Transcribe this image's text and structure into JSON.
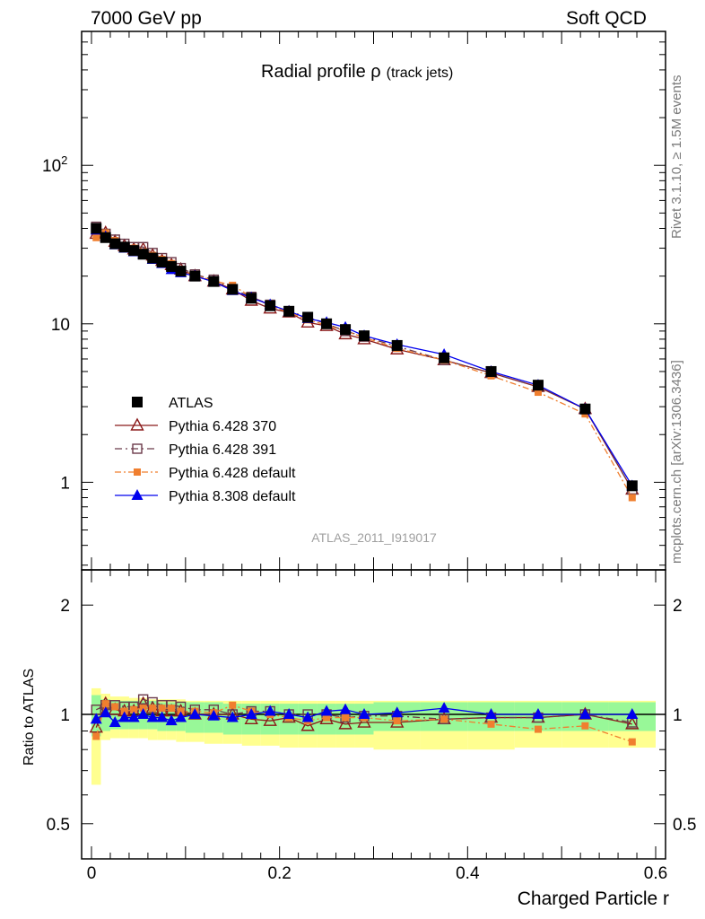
{
  "header": {
    "energy_label": "7000 GeV pp",
    "category_label": "Soft QCD"
  },
  "side_labels": {
    "rivet": "Rivet 3.1.10, ≥ 1.5M events",
    "mcplots": "mcplots.cern.ch [arXiv:1306.3436]"
  },
  "colors": {
    "atlas": "#000000",
    "pythia_370": "#8b1a1a",
    "pythia_391": "#6b3a4a",
    "pythia_6_default": "#f07f2f",
    "pythia_8_default": "#0000ee",
    "band_inner": "#98f898",
    "band_outer": "#ffff90"
  },
  "chart_data": [
    {
      "type": "scatter",
      "title": "Radial profile ρ",
      "title_suffix": "(track jets)",
      "watermark": "ATLAS_2011_I919017",
      "ylabel": "",
      "y_scale": "log",
      "ylim": [
        0.28,
        700
      ],
      "xlim": [
        -0.02,
        0.6
      ],
      "y_tick_labels": [
        "1",
        "10",
        "10^2"
      ],
      "legend_position": "lower-left",
      "x": [
        0.005,
        0.015,
        0.025,
        0.035,
        0.045,
        0.055,
        0.065,
        0.075,
        0.085,
        0.095,
        0.11,
        0.13,
        0.15,
        0.17,
        0.19,
        0.21,
        0.23,
        0.25,
        0.27,
        0.29,
        0.325,
        0.375,
        0.425,
        0.475,
        0.525,
        0.575
      ],
      "series": [
        {
          "name": "ATLAS",
          "marker": "filled-square",
          "color": "#000000",
          "values": [
            40.0,
            35.0,
            32.0,
            30.5,
            29.0,
            27.5,
            26.0,
            24.5,
            23.0,
            21.5,
            20.0,
            18.5,
            16.5,
            14.5,
            13.0,
            12.0,
            11.0,
            10.0,
            9.2,
            8.4,
            7.3,
            6.1,
            5.0,
            4.1,
            2.9,
            0.95
          ]
        },
        {
          "name": "Pythia 6.428 370",
          "marker": "open-triangle",
          "color": "#8b1a1a",
          "values": [
            37.0,
            37.5,
            33.0,
            31.0,
            29.5,
            29.5,
            27.0,
            25.0,
            23.5,
            22.0,
            20.0,
            18.5,
            16.5,
            14.0,
            12.5,
            11.8,
            10.2,
            9.7,
            8.6,
            8.0,
            6.9,
            5.9,
            4.9,
            4.0,
            2.9,
            0.9
          ]
        },
        {
          "name": "Pythia 6.428 391",
          "marker": "open-square",
          "color": "#6b3a4a",
          "values": [
            41.0,
            37.0,
            34.0,
            32.0,
            30.5,
            30.5,
            28.0,
            26.0,
            24.5,
            22.5,
            20.5,
            19.0,
            16.5,
            14.8,
            13.2,
            12.0,
            11.0,
            10.0,
            9.0,
            8.3,
            7.2,
            5.9,
            4.9,
            4.0,
            2.9,
            0.9
          ]
        },
        {
          "name": "Pythia 6.428 default",
          "marker": "filled-square-small",
          "color": "#f07f2f",
          "values": [
            35.0,
            37.5,
            33.5,
            31.0,
            30.0,
            28.5,
            27.0,
            25.5,
            24.0,
            22.0,
            20.3,
            18.7,
            17.5,
            14.8,
            13.0,
            11.8,
            10.6,
            9.8,
            9.0,
            8.2,
            7.0,
            5.9,
            4.7,
            3.7,
            2.7,
            0.8
          ]
        },
        {
          "name": "Pythia 8.308 default",
          "marker": "filled-triangle",
          "color": "#0000ee",
          "values": [
            39.0,
            35.5,
            31.5,
            30.0,
            28.5,
            27.5,
            25.5,
            24.0,
            22.0,
            21.0,
            20.0,
            18.4,
            16.2,
            14.6,
            13.2,
            12.0,
            10.8,
            10.2,
            9.5,
            8.4,
            7.4,
            6.4,
            5.0,
            4.1,
            2.9,
            0.95
          ]
        }
      ]
    },
    {
      "type": "scatter",
      "ylabel": "Ratio to ATLAS",
      "xlabel": "Charged Particle r",
      "y_scale": "log",
      "ylim": [
        0.4,
        2.5
      ],
      "xlim": [
        -0.02,
        0.6
      ],
      "x_tick_labels": [
        "0",
        "0.2",
        "0.4",
        "0.6"
      ],
      "y_tick_labels": [
        "0.5",
        "1",
        "2"
      ],
      "reference_line": 1,
      "x": [
        0.005,
        0.015,
        0.025,
        0.035,
        0.045,
        0.055,
        0.065,
        0.075,
        0.085,
        0.095,
        0.11,
        0.13,
        0.15,
        0.17,
        0.19,
        0.21,
        0.23,
        0.25,
        0.27,
        0.29,
        0.325,
        0.375,
        0.425,
        0.475,
        0.525,
        0.575
      ],
      "x_edges": [
        0.0,
        0.01,
        0.02,
        0.03,
        0.04,
        0.05,
        0.06,
        0.07,
        0.08,
        0.09,
        0.1,
        0.12,
        0.14,
        0.16,
        0.18,
        0.2,
        0.22,
        0.24,
        0.26,
        0.28,
        0.3,
        0.35,
        0.4,
        0.45,
        0.5,
        0.55,
        0.6
      ],
      "band_inner": {
        "low": [
          0.87,
          0.9,
          0.91,
          0.91,
          0.91,
          0.91,
          0.91,
          0.9,
          0.9,
          0.9,
          0.89,
          0.89,
          0.88,
          0.88,
          0.88,
          0.88,
          0.88,
          0.88,
          0.88,
          0.88,
          0.9,
          0.9,
          0.9,
          0.9,
          0.9,
          0.9
        ],
        "high": [
          1.13,
          1.1,
          1.09,
          1.09,
          1.09,
          1.09,
          1.09,
          1.08,
          1.08,
          1.08,
          1.08,
          1.08,
          1.07,
          1.07,
          1.07,
          1.07,
          1.07,
          1.07,
          1.07,
          1.07,
          1.08,
          1.08,
          1.08,
          1.08,
          1.08,
          1.08
        ]
      },
      "band_outer": {
        "low": [
          0.64,
          0.85,
          0.86,
          0.86,
          0.86,
          0.86,
          0.85,
          0.85,
          0.85,
          0.84,
          0.84,
          0.83,
          0.83,
          0.82,
          0.82,
          0.81,
          0.81,
          0.81,
          0.81,
          0.81,
          0.8,
          0.8,
          0.8,
          0.81,
          0.81,
          0.81
        ],
        "high": [
          1.18,
          1.14,
          1.12,
          1.12,
          1.11,
          1.11,
          1.1,
          1.1,
          1.1,
          1.1,
          1.09,
          1.09,
          1.09,
          1.09,
          1.09,
          1.09,
          1.09,
          1.09,
          1.09,
          1.09,
          1.09,
          1.09,
          1.09,
          1.09,
          1.09,
          1.09
        ]
      },
      "series": [
        {
          "name": "Pythia 6.428 370",
          "color": "#8b1a1a",
          "values": [
            0.92,
            1.07,
            1.03,
            1.02,
            1.02,
            1.07,
            1.04,
            1.02,
            1.02,
            1.02,
            1.0,
            1.0,
            1.0,
            0.97,
            0.96,
            0.98,
            0.93,
            0.97,
            0.94,
            0.95,
            0.95,
            0.97,
            0.98,
            0.98,
            1.0,
            0.94
          ]
        },
        {
          "name": "Pythia 6.428 391",
          "color": "#6b3a4a",
          "values": [
            1.03,
            1.06,
            1.06,
            1.05,
            1.05,
            1.1,
            1.08,
            1.06,
            1.06,
            1.05,
            1.03,
            1.03,
            1.0,
            1.02,
            1.02,
            1.0,
            1.0,
            1.0,
            0.98,
            0.99,
            0.99,
            0.97,
            0.98,
            0.98,
            1.0,
            0.95
          ]
        },
        {
          "name": "Pythia 6.428 default",
          "color": "#f07f2f",
          "values": [
            0.87,
            1.07,
            1.05,
            1.02,
            1.03,
            1.04,
            1.04,
            1.04,
            1.04,
            1.02,
            1.02,
            1.01,
            1.06,
            1.02,
            1.0,
            0.98,
            0.96,
            0.98,
            0.98,
            0.98,
            0.96,
            0.97,
            0.94,
            0.91,
            0.93,
            0.84
          ]
        },
        {
          "name": "Pythia 8.308 default",
          "color": "#0000ee",
          "values": [
            0.97,
            1.01,
            0.95,
            0.98,
            0.98,
            1.0,
            0.98,
            0.98,
            0.96,
            0.98,
            1.0,
            0.99,
            0.98,
            1.0,
            1.02,
            1.0,
            0.98,
            1.02,
            1.03,
            1.0,
            1.01,
            1.04,
            1.0,
            1.0,
            1.0,
            1.0
          ]
        }
      ]
    }
  ]
}
